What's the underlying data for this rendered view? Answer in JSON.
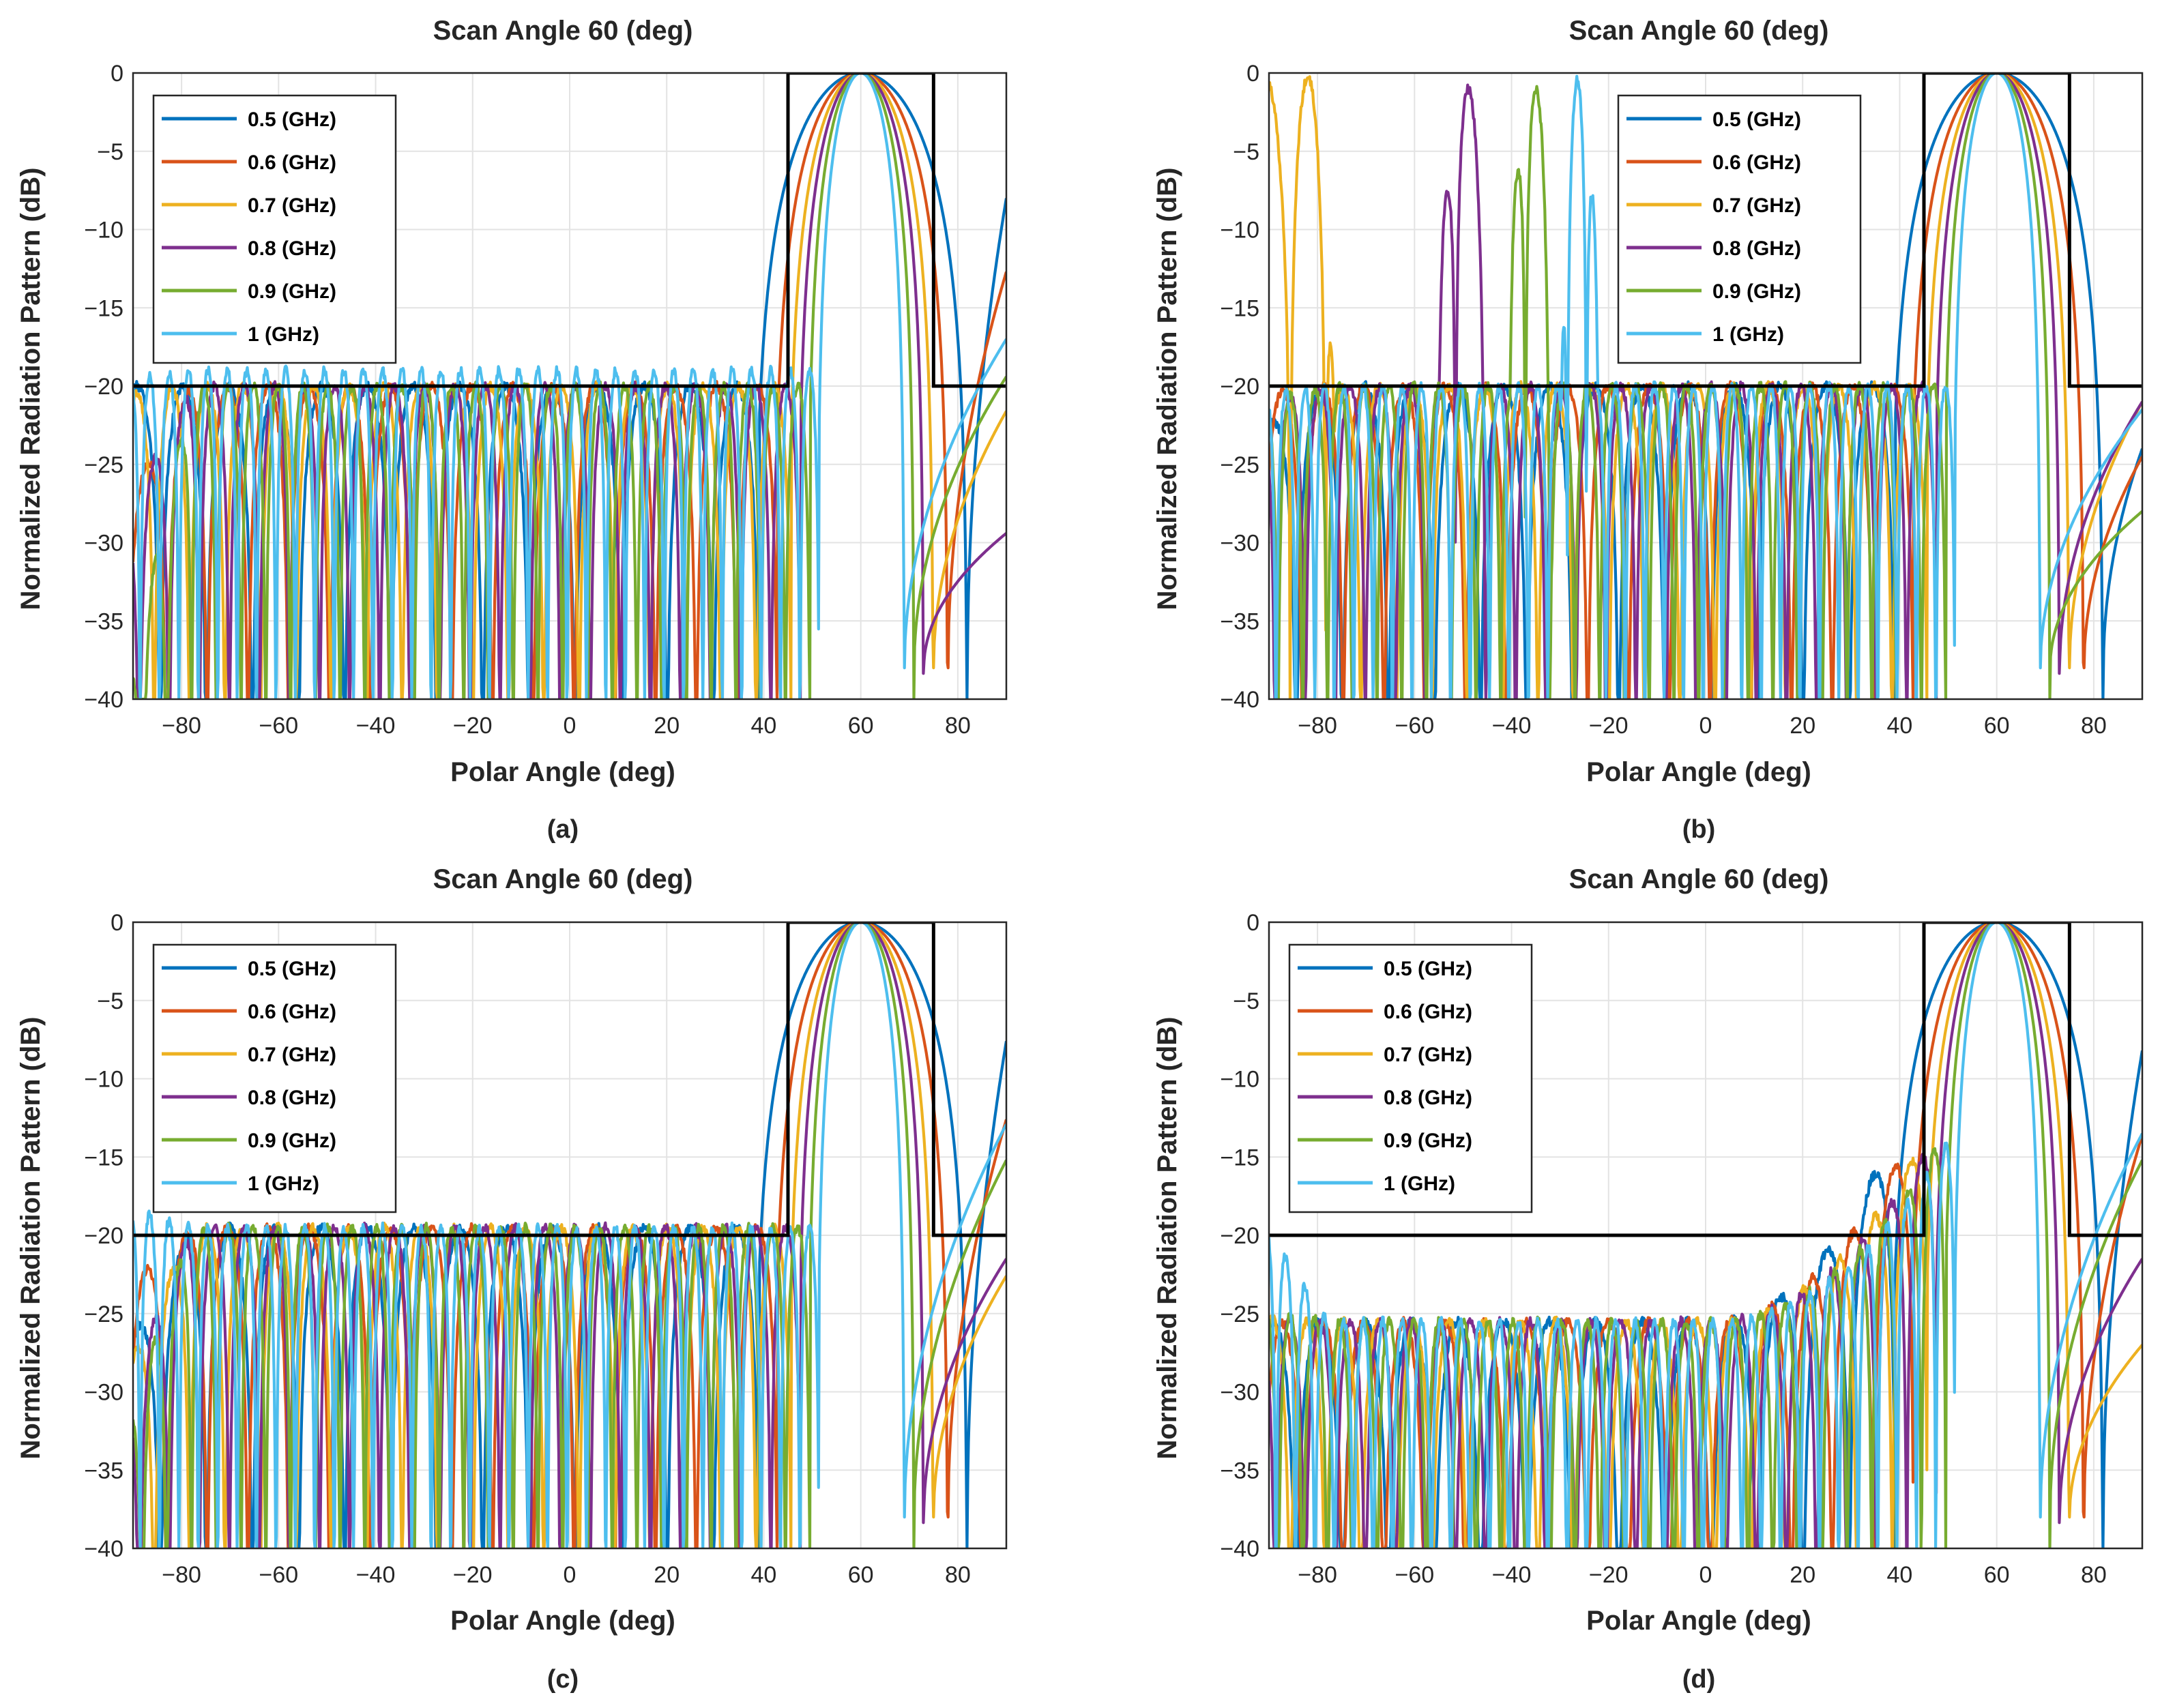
{
  "figure": {
    "captions": [
      "(a)",
      "(b)",
      "(c)",
      "(d)"
    ]
  },
  "chart_data": [
    {
      "panel": "a",
      "type": "line",
      "title": "Scan Angle 60 (deg)",
      "xlabel": "Polar Angle (deg)",
      "ylabel": "Normalized Radiation Pattern (dB)",
      "xlim": [
        -90,
        90
      ],
      "ylim": [
        -40,
        0
      ],
      "xticks": [
        -80,
        -60,
        -40,
        -20,
        0,
        20,
        40,
        60,
        80
      ],
      "yticks": [
        0,
        -5,
        -10,
        -15,
        -20,
        -25,
        -30,
        -35,
        -40
      ],
      "grid": true,
      "legend_position": "top-left",
      "mask": {
        "sidelobe_level_db": -20,
        "main_beam_from": 45,
        "main_beam_to": 75
      },
      "series": [
        {
          "name": "0.5 (GHz)",
          "color": "#0072BD",
          "beam_peak_deg": 60,
          "first_null_deg": 82,
          "edge_level_db": -8,
          "sidelobe_level_db": -20,
          "start_level_db": -20
        },
        {
          "name": "0.6 (GHz)",
          "color": "#D95319",
          "beam_peak_deg": 60,
          "first_null_deg": 78,
          "edge_level_db": -12.7,
          "sidelobe_level_db": -20,
          "start_level_db": -26.4
        },
        {
          "name": "0.7 (GHz)",
          "color": "#EDB120",
          "beam_peak_deg": 60,
          "first_null_deg": 75,
          "edge_level_db": -21.6,
          "sidelobe_level_db": -20,
          "start_level_db": -20.5
        },
        {
          "name": "0.8 (GHz)",
          "color": "#7E2F8E",
          "beam_peak_deg": 60,
          "first_null_deg": 73,
          "edge_level_db": -29.4,
          "sidelobe_level_db": -20,
          "start_level_db": -27.3
        },
        {
          "name": "0.9 (GHz)",
          "color": "#77AC30",
          "beam_peak_deg": 60,
          "first_null_deg": 71,
          "edge_level_db": -19.4,
          "sidelobe_level_db": -20,
          "start_level_db": -38
        },
        {
          "name": "1 (GHz)",
          "color": "#4DBEEE",
          "beam_peak_deg": 60,
          "first_null_deg": 69,
          "edge_level_db": -17,
          "sidelobe_level_db": -19,
          "start_level_db": -19.5
        }
      ]
    },
    {
      "panel": "b",
      "type": "line",
      "title": "Scan Angle 60 (deg)",
      "xlabel": "Polar Angle (deg)",
      "ylabel": "Normalized Radiation Pattern (dB)",
      "xlim": [
        -90,
        90
      ],
      "ylim": [
        -40,
        0
      ],
      "xticks": [
        -80,
        -60,
        -40,
        -20,
        0,
        20,
        40,
        60,
        80
      ],
      "yticks": [
        0,
        -5,
        -10,
        -15,
        -20,
        -25,
        -30,
        -35,
        -40
      ],
      "grid": true,
      "legend_position": "top-right",
      "mask": {
        "sidelobe_level_db": -20,
        "main_beam_from": 45,
        "main_beam_to": 75
      },
      "series": [
        {
          "name": "0.5 (GHz)",
          "color": "#0072BD",
          "beam_peak_deg": 60,
          "first_null_deg": 82,
          "edge_level_db": -24,
          "sidelobe_level_db": -20,
          "start_level_db": -22.5
        },
        {
          "name": "0.6 (GHz)",
          "color": "#D95319",
          "beam_peak_deg": 60,
          "first_null_deg": 78,
          "edge_level_db": -24.5,
          "sidelobe_level_db": -20,
          "start_level_db": -20.5
        },
        {
          "name": "0.7 (GHz)",
          "color": "#EDB120",
          "beam_peak_deg": 60,
          "first_null_deg": 75,
          "edge_level_db": -21,
          "sidelobe_level_db": -20,
          "start_level_db": -0.3,
          "grating_lobe_deg": -82
        },
        {
          "name": "0.8 (GHz)",
          "color": "#7E2F8E",
          "beam_peak_deg": 60,
          "first_null_deg": 73,
          "edge_level_db": -21,
          "sidelobe_level_db": -20,
          "start_level_db": -21,
          "grating_lobe_deg": -50
        },
        {
          "name": "0.9 (GHz)",
          "color": "#77AC30",
          "beam_peak_deg": 60,
          "first_null_deg": 71,
          "edge_level_db": -28,
          "sidelobe_level_db": -20,
          "start_level_db": -21,
          "grating_lobe_deg": -36
        },
        {
          "name": "1 (GHz)",
          "color": "#4DBEEE",
          "beam_peak_deg": 60,
          "first_null_deg": 69,
          "edge_level_db": -21.5,
          "sidelobe_level_db": -20,
          "start_level_db": -20.5,
          "grating_lobe_deg": -26
        }
      ]
    },
    {
      "panel": "c",
      "type": "line",
      "title": "Scan Angle 60 (deg)",
      "xlabel": "Polar Angle (deg)",
      "ylabel": "Normalized Radiation Pattern (dB)",
      "xlim": [
        -90,
        90
      ],
      "ylim": [
        -40,
        0
      ],
      "xticks": [
        -80,
        -60,
        -40,
        -20,
        0,
        20,
        40,
        60,
        80
      ],
      "yticks": [
        0,
        -5,
        -10,
        -15,
        -20,
        -25,
        -30,
        -35,
        -40
      ],
      "grid": true,
      "legend_position": "top-left",
      "mask": {
        "sidelobe_level_db": -20,
        "main_beam_from": 45,
        "main_beam_to": 75
      },
      "series": [
        {
          "name": "0.5 (GHz)",
          "color": "#0072BD",
          "beam_peak_deg": 60,
          "first_null_deg": 82,
          "edge_level_db": -7.6,
          "sidelobe_level_db": -19.5,
          "start_level_db": -26.4
        },
        {
          "name": "0.6 (GHz)",
          "color": "#D95319",
          "beam_peak_deg": 60,
          "first_null_deg": 78,
          "edge_level_db": -12.6,
          "sidelobe_level_db": -19.5,
          "start_level_db": -23
        },
        {
          "name": "0.7 (GHz)",
          "color": "#EDB120",
          "beam_peak_deg": 60,
          "first_null_deg": 75,
          "edge_level_db": -22.6,
          "sidelobe_level_db": -19.5,
          "start_level_db": -27.8
        },
        {
          "name": "0.8 (GHz)",
          "color": "#7E2F8E",
          "beam_peak_deg": 60,
          "first_null_deg": 73,
          "edge_level_db": -21.5,
          "sidelobe_level_db": -19.5,
          "start_level_db": -28.8
        },
        {
          "name": "0.9 (GHz)",
          "color": "#77AC30",
          "beam_peak_deg": 60,
          "first_null_deg": 71,
          "edge_level_db": -15.2,
          "sidelobe_level_db": -19.5,
          "start_level_db": -31
        },
        {
          "name": "1 (GHz)",
          "color": "#4DBEEE",
          "beam_peak_deg": 60,
          "first_null_deg": 69,
          "edge_level_db": -12.9,
          "sidelobe_level_db": -19.5,
          "start_level_db": -18.3
        }
      ]
    },
    {
      "panel": "d",
      "type": "line",
      "title": "Scan Angle 60 (deg)",
      "xlabel": "Polar Angle (deg)",
      "ylabel": "Normalized Radiation Pattern (dB)",
      "xlim": [
        -90,
        90
      ],
      "ylim": [
        -40,
        0
      ],
      "xticks": [
        -80,
        -60,
        -40,
        -20,
        0,
        20,
        40,
        60,
        80
      ],
      "yticks": [
        0,
        -5,
        -10,
        -15,
        -20,
        -25,
        -30,
        -35,
        -40
      ],
      "grid": true,
      "legend_position": "top-left",
      "mask": {
        "sidelobe_level_db": -20,
        "main_beam_from": 45,
        "main_beam_to": 75
      },
      "series": [
        {
          "name": "0.5 (GHz)",
          "color": "#0072BD",
          "beam_peak_deg": 60,
          "first_null_deg": 82,
          "edge_level_db": -8.2,
          "sidelobe_level_db": -25.5,
          "near_beam_level_db": -13.3,
          "start_level_db": -25.5
        },
        {
          "name": "0.6 (GHz)",
          "color": "#D95319",
          "beam_peak_deg": 60,
          "first_null_deg": 78,
          "edge_level_db": -13.6,
          "sidelobe_level_db": -25.5,
          "near_beam_level_db": -13.3,
          "start_level_db": -25.6
        },
        {
          "name": "0.7 (GHz)",
          "color": "#EDB120",
          "beam_peak_deg": 60,
          "first_null_deg": 75,
          "edge_level_db": -27,
          "sidelobe_level_db": -25.5,
          "near_beam_level_db": -13.3,
          "start_level_db": -25.3
        },
        {
          "name": "0.8 (GHz)",
          "color": "#7E2F8E",
          "beam_peak_deg": 60,
          "first_null_deg": 73,
          "edge_level_db": -21.5,
          "sidelobe_level_db": -25.5,
          "near_beam_level_db": -13.3,
          "start_level_db": -25.4
        },
        {
          "name": "0.9 (GHz)",
          "color": "#77AC30",
          "beam_peak_deg": 60,
          "first_null_deg": 71,
          "edge_level_db": -15.2,
          "sidelobe_level_db": -25.5,
          "near_beam_level_db": -13.3,
          "start_level_db": -24.8
        },
        {
          "name": "1 (GHz)",
          "color": "#4DBEEE",
          "beam_peak_deg": 60,
          "first_null_deg": 69,
          "edge_level_db": -13.5,
          "sidelobe_level_db": -25.5,
          "near_beam_level_db": -13.3,
          "start_level_db": -19.6
        }
      ]
    }
  ]
}
